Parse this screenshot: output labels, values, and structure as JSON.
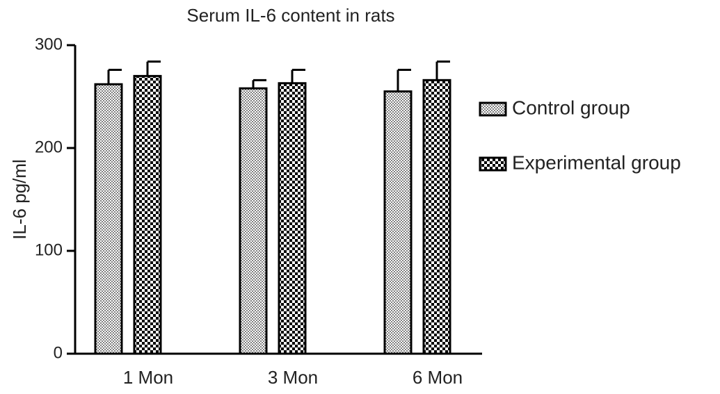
{
  "chart_data": {
    "type": "bar",
    "title": "Serum IL-6 content in rats",
    "y_label": "IL-6 pg/ml",
    "categories": [
      "1 Mon",
      "3 Mon",
      "6 Mon"
    ],
    "series": [
      {
        "name": "Control group",
        "color": "#808080",
        "values": [
          262,
          258,
          255
        ],
        "errors": [
          14,
          8,
          21
        ]
      },
      {
        "name": "Experimental group",
        "color": "#000000",
        "values": [
          270,
          263,
          266
        ],
        "errors": [
          14,
          13,
          18
        ]
      }
    ],
    "ylim": [
      0,
      300
    ],
    "yticks": [
      0,
      100,
      200,
      300
    ]
  }
}
